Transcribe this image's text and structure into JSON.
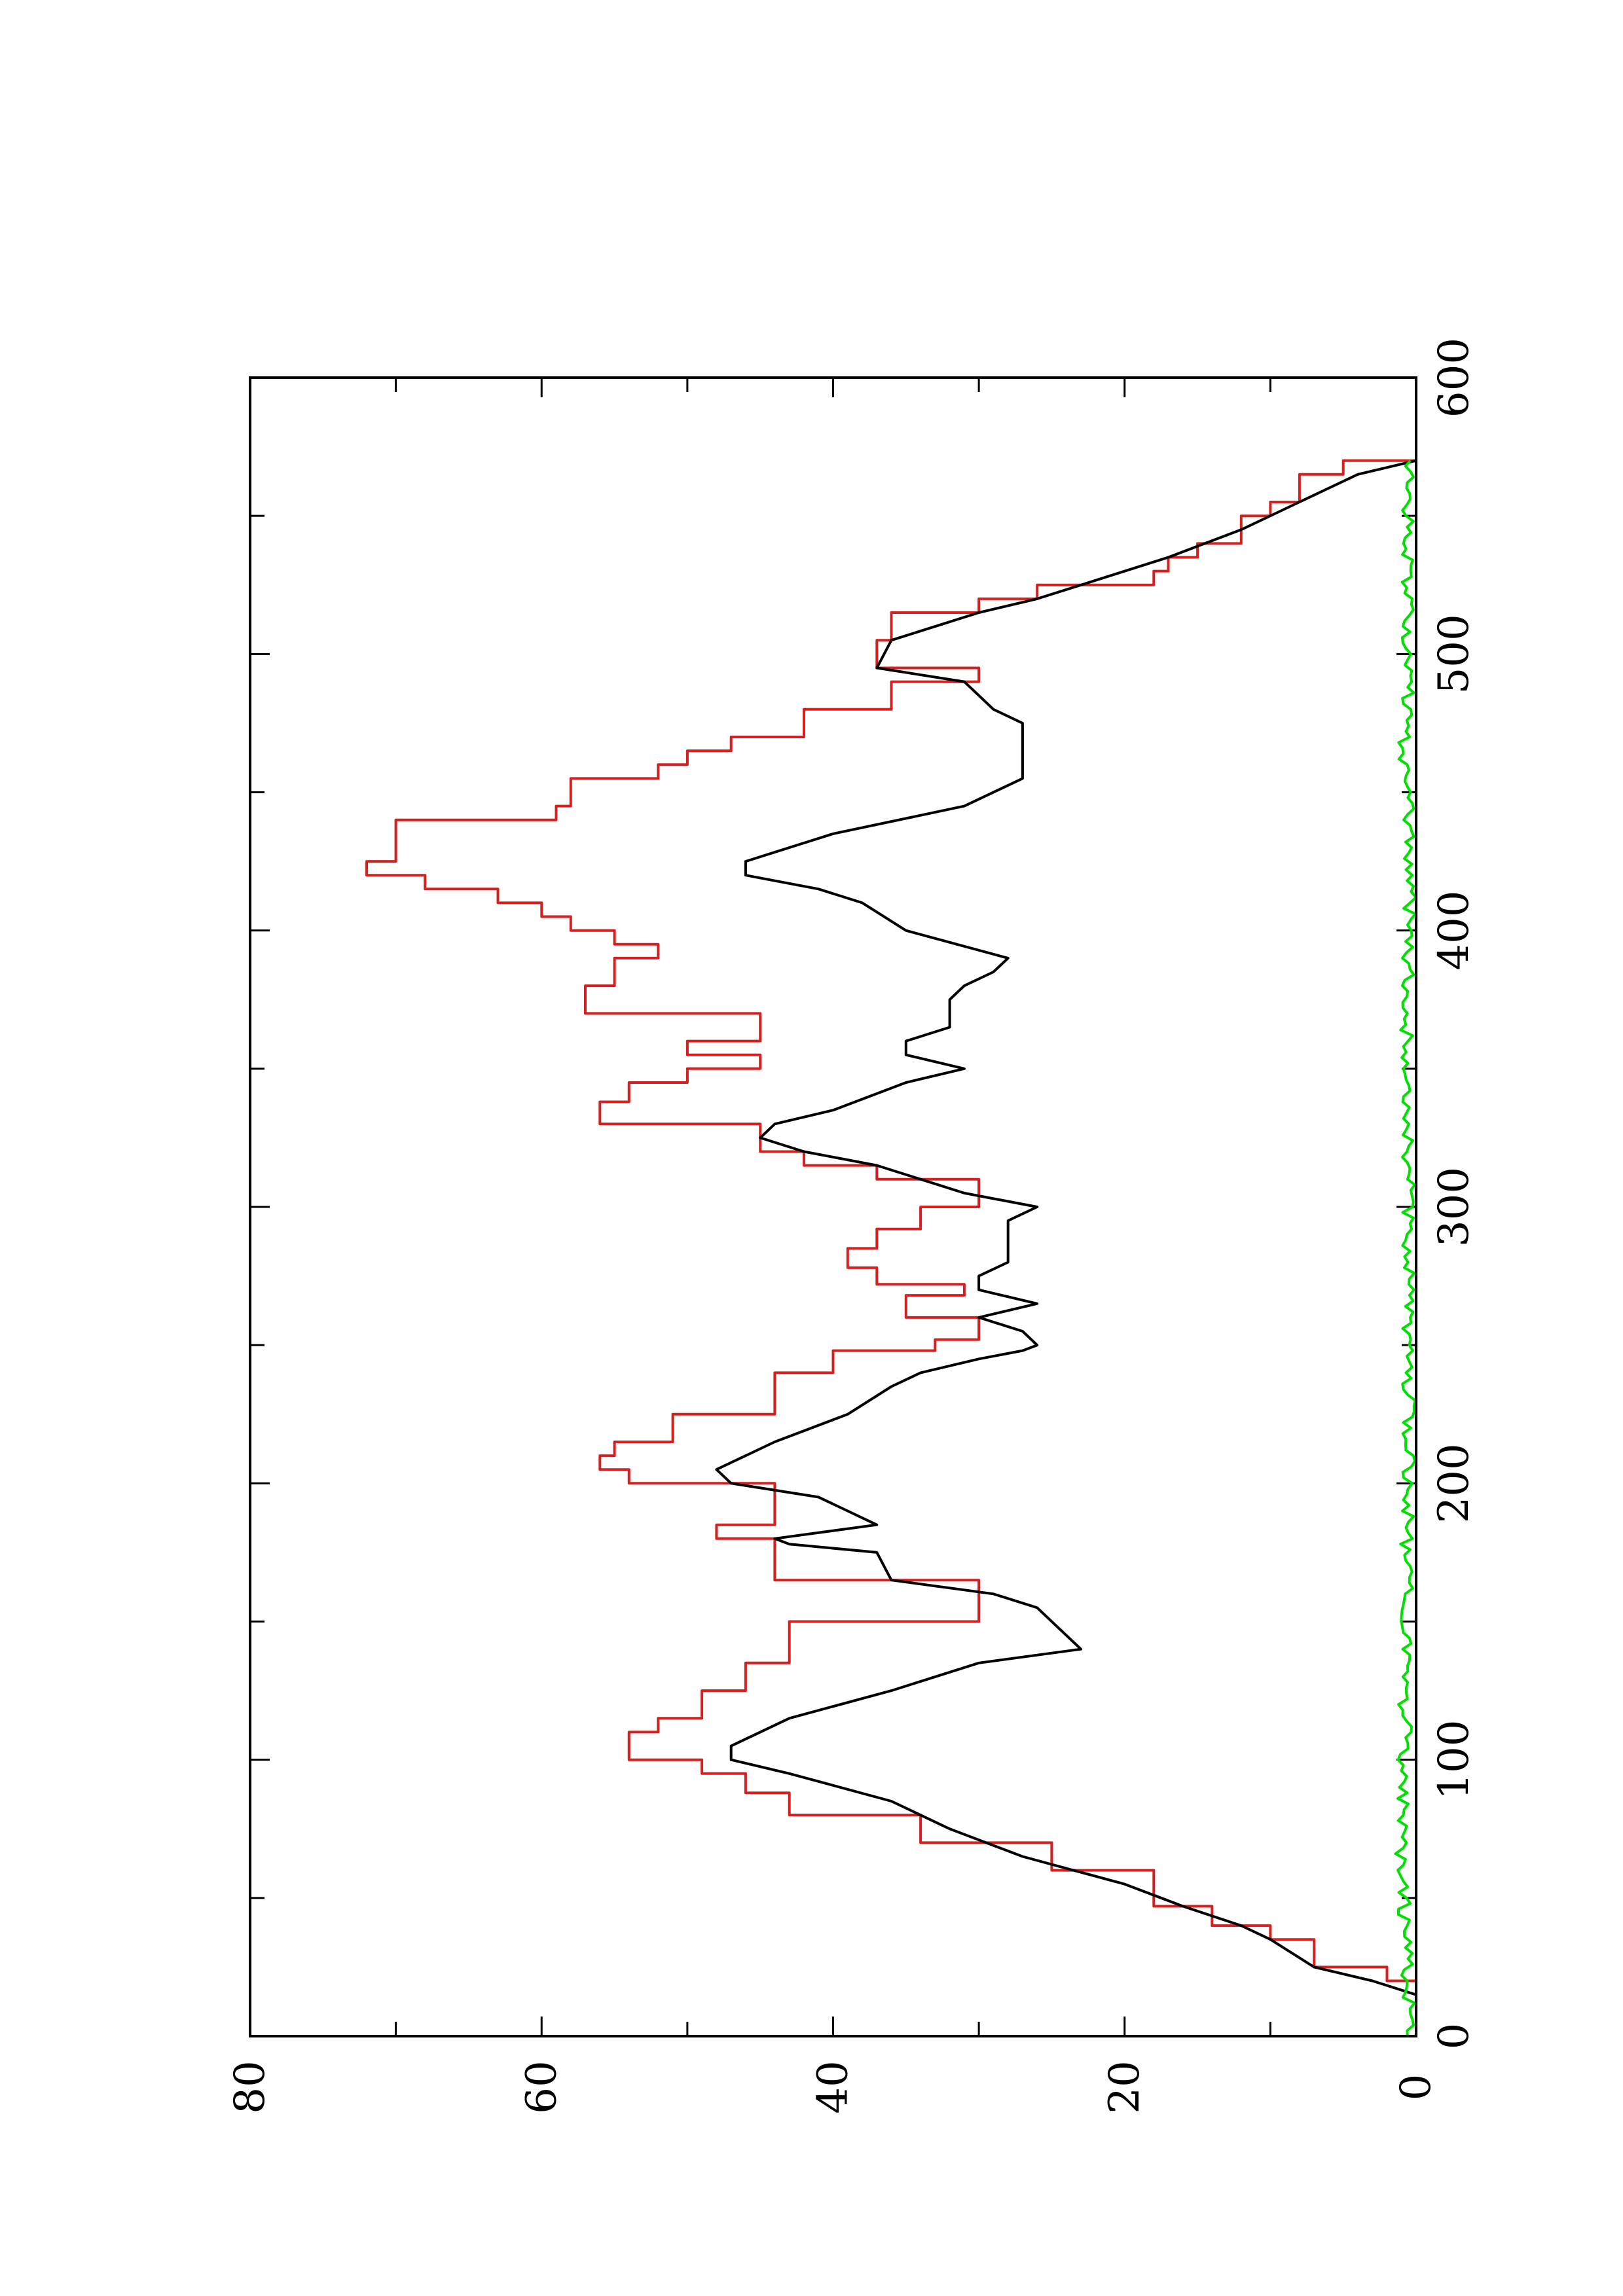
{
  "chart_data": {
    "type": "line",
    "orientation": "rotated-90-ccw",
    "title": "",
    "xlabel": "",
    "ylabel": "",
    "xlim": [
      0,
      600
    ],
    "ylim": [
      0,
      80
    ],
    "x_ticks": [
      "0",
      "100",
      "200",
      "300",
      "400",
      "500",
      "600"
    ],
    "y_ticks": [
      "0",
      "20",
      "40",
      "60",
      "80"
    ],
    "grid": false,
    "legend": "none",
    "series": [
      {
        "color": "#d62020",
        "step": true,
        "x": [
          0,
          15,
          20,
          25,
          35,
          40,
          47,
          60,
          70,
          80,
          88,
          95,
          100,
          110,
          115,
          125,
          135,
          150,
          165,
          180,
          185,
          200,
          205,
          210,
          215,
          225,
          240,
          248,
          252,
          260,
          268,
          272,
          278,
          285,
          292,
          300,
          310,
          315,
          320,
          330,
          338,
          345,
          350,
          355,
          360,
          370,
          375,
          380,
          390,
          395,
          400,
          405,
          410,
          415,
          420,
          425,
          440,
          445,
          455,
          460,
          465,
          470,
          480,
          490,
          495,
          505,
          515,
          520,
          525,
          530,
          535,
          540,
          550,
          555,
          565,
          570
        ],
        "y": [
          0,
          0,
          2,
          7,
          10,
          14,
          18,
          25,
          34,
          43,
          46,
          49,
          54,
          52,
          49,
          46,
          43,
          30,
          44,
          48,
          44,
          54,
          56,
          55,
          51,
          44,
          40,
          33,
          30,
          35,
          31,
          37,
          39,
          37,
          34,
          30,
          37,
          42,
          45,
          56,
          54,
          50,
          45,
          50,
          45,
          57,
          57,
          55,
          52,
          55,
          58,
          60,
          63,
          68,
          72,
          70,
          59,
          58,
          52,
          50,
          47,
          42,
          36,
          30,
          37,
          36,
          30,
          26,
          18,
          17,
          15,
          12,
          10,
          8,
          5,
          0
        ]
      },
      {
        "color": "#000000",
        "step": false,
        "x": [
          0,
          15,
          20,
          25,
          35,
          40,
          47,
          55,
          65,
          75,
          85,
          95,
          100,
          105,
          115,
          125,
          135,
          140,
          145,
          155,
          160,
          165,
          175,
          178,
          180,
          185,
          195,
          200,
          205,
          210,
          215,
          225,
          235,
          240,
          245,
          248,
          250,
          255,
          260,
          265,
          270,
          275,
          280,
          285,
          290,
          295,
          300,
          305,
          315,
          320,
          325,
          330,
          335,
          345,
          350,
          355,
          360,
          365,
          370,
          375,
          380,
          385,
          390,
          400,
          410,
          415,
          420,
          425,
          435,
          445,
          455,
          460,
          465,
          470,
          475,
          480,
          490,
          495,
          505,
          515,
          520,
          525,
          535,
          545,
          555,
          565,
          570
        ],
        "y": [
          0,
          0,
          3,
          7,
          10,
          12,
          16,
          20,
          27,
          32,
          36,
          43,
          47,
          47,
          43,
          36,
          30,
          23,
          24,
          26,
          29,
          36,
          37,
          43,
          44,
          37,
          41,
          47,
          48,
          46,
          44,
          39,
          36,
          34,
          30,
          27,
          26,
          27,
          30,
          26,
          30,
          30,
          28,
          28,
          28,
          28,
          26,
          31,
          37,
          42,
          45,
          44,
          40,
          35,
          31,
          35,
          35,
          32,
          32,
          32,
          31,
          29,
          28,
          35,
          38,
          41,
          46,
          46,
          40,
          31,
          27,
          27,
          27,
          27,
          27,
          29,
          31,
          37,
          36,
          30,
          26,
          23,
          17,
          12,
          8,
          4,
          0
        ]
      },
      {
        "color": "#00e000",
        "step": false,
        "noise": true,
        "x": [
          0,
          10,
          20,
          30,
          40,
          50,
          60,
          70,
          80,
          90,
          100,
          110,
          120,
          130,
          140,
          150,
          160,
          170,
          180,
          190,
          200,
          210,
          220,
          230,
          240,
          250,
          260,
          270,
          280,
          290,
          300,
          310,
          320,
          330,
          340,
          350,
          360,
          370,
          380,
          390,
          400,
          410,
          420,
          430,
          440,
          450,
          460,
          470,
          480,
          490,
          500,
          510,
          520,
          530,
          540,
          550,
          560,
          570
        ],
        "y": [
          0.6,
          0.4,
          0.8,
          0.5,
          0.9,
          0.7,
          1.1,
          0.9,
          1.0,
          0.8,
          1.0,
          0.7,
          0.8,
          0.6,
          0.7,
          0.6,
          0.7,
          0.5,
          0.7,
          0.5,
          0.6,
          0.5,
          0.6,
          0.5,
          0.7,
          0.6,
          0.7,
          0.5,
          0.6,
          0.5,
          0.6,
          0.5,
          0.6,
          0.5,
          0.5,
          0.5,
          0.6,
          0.7,
          0.6,
          0.5,
          0.6,
          0.4,
          0.5,
          0.4,
          0.5,
          0.6,
          1.0,
          0.8,
          0.7,
          0.5,
          0.6,
          0.5,
          0.6,
          0.5,
          0.6,
          0.5,
          0.6,
          0.4
        ]
      }
    ]
  }
}
